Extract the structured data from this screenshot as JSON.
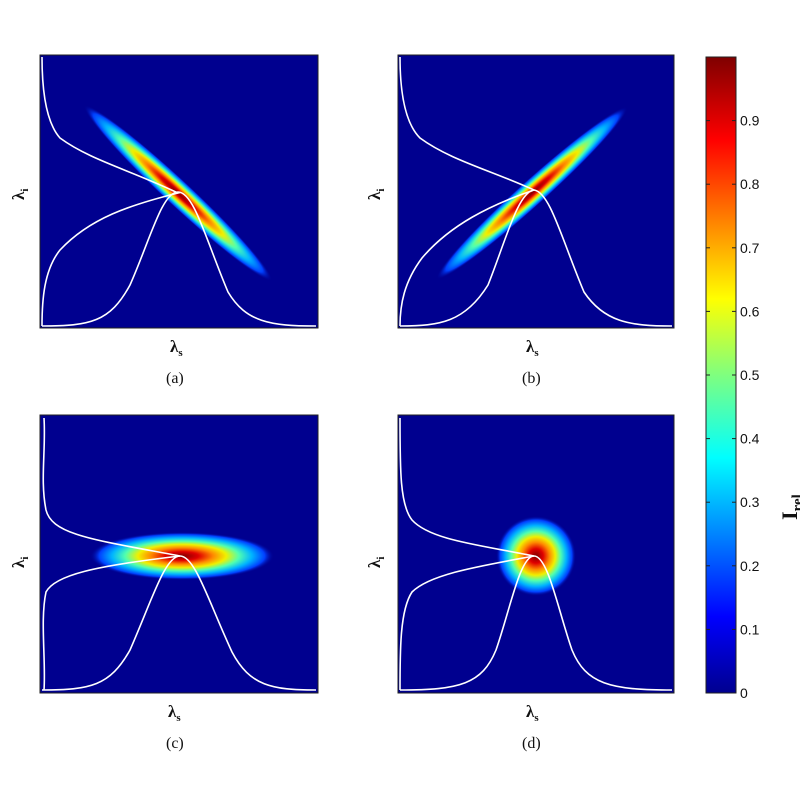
{
  "figure": {
    "panels": [
      {
        "id": "a",
        "caption": "(a)",
        "xlabel": "λ",
        "xlabel_sub": "s",
        "ylabel": "λ",
        "ylabel_sub": "i"
      },
      {
        "id": "b",
        "caption": "(b)",
        "xlabel": "λ",
        "xlabel_sub": "s",
        "ylabel": "λ",
        "ylabel_sub": "i"
      },
      {
        "id": "c",
        "caption": "(c)",
        "xlabel": "λ",
        "xlabel_sub": "s",
        "ylabel": "λ",
        "ylabel_sub": "i"
      },
      {
        "id": "d",
        "caption": "(d)",
        "xlabel": "λ",
        "xlabel_sub": "s",
        "ylabel": "λ",
        "ylabel_sub": "i"
      }
    ],
    "colorbar": {
      "label": "I",
      "label_sub": "rel",
      "ticks": [
        "0",
        "0.1",
        "0.2",
        "0.3",
        "0.4",
        "0.5",
        "0.6",
        "0.7",
        "0.8",
        "0.9"
      ],
      "range": [
        0,
        1
      ]
    }
  },
  "chart_data": [
    {
      "type": "heatmap",
      "panel": "a",
      "xlabel": "λs",
      "ylabel": "λi",
      "colormap": "jet",
      "feature": "narrow elongated ellipse along anti-diagonal (negative correlation)",
      "marginals": "white curves: λs spectrum along bottom, λi spectrum along left",
      "grid": false
    },
    {
      "type": "heatmap",
      "panel": "b",
      "xlabel": "λs",
      "ylabel": "λi",
      "colormap": "jet",
      "feature": "narrow elongated ellipse along diagonal (positive correlation)",
      "marginals": "white curves: λs spectrum along bottom, λi spectrum along left",
      "grid": false
    },
    {
      "type": "heatmap",
      "panel": "c",
      "xlabel": "λs",
      "ylabel": "λi",
      "colormap": "jet",
      "feature": "horizontally elongated ellipse (broad λs, narrow λi)",
      "marginals": "white curves: λs spectrum along bottom, λi spectrum along left",
      "grid": false
    },
    {
      "type": "heatmap",
      "panel": "d",
      "xlabel": "λs",
      "ylabel": "λi",
      "colormap": "jet",
      "feature": "circular spot (uncorrelated)",
      "marginals": "white curves: λs spectrum along bottom, λi spectrum along left",
      "grid": false
    }
  ],
  "colors": {
    "background": "#00008f",
    "curve": "#ffffff"
  }
}
